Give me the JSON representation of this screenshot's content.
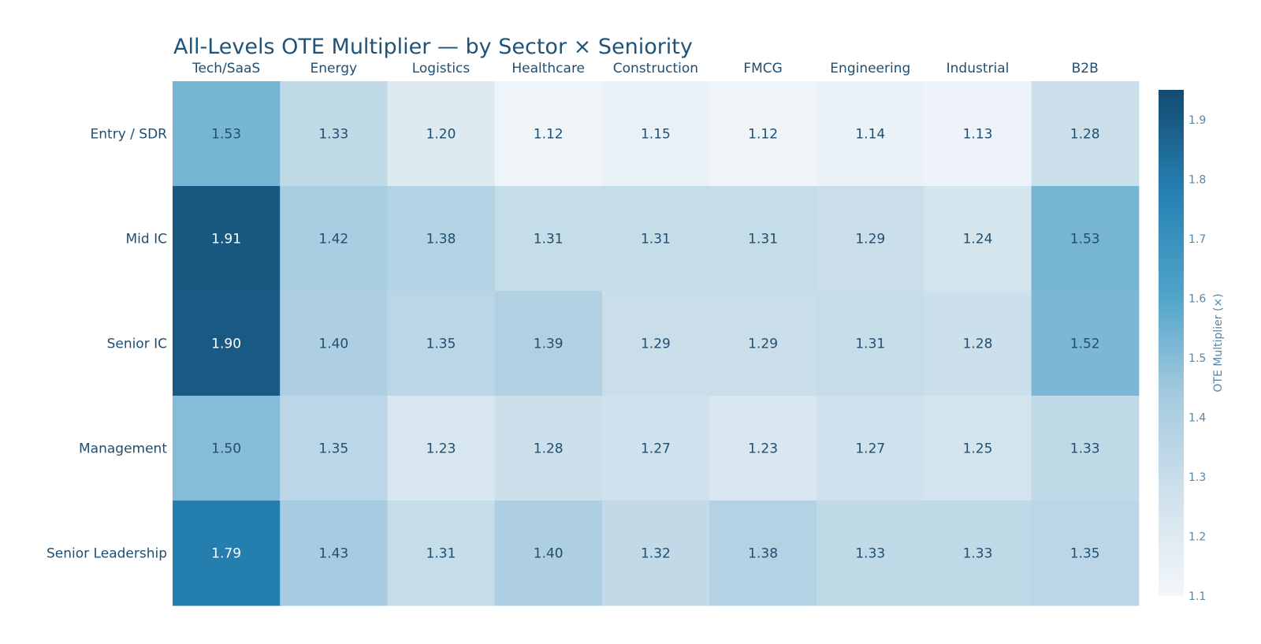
{
  "chart_data": {
    "type": "heatmap",
    "title": "All-Levels OTE Multiplier — by Sector × Seniority",
    "columns": [
      "Tech/SaaS",
      "Energy",
      "Logistics",
      "Healthcare",
      "Construction",
      "FMCG",
      "Engineering",
      "Industrial",
      "B2B"
    ],
    "rows": [
      "Entry / SDR",
      "Mid IC",
      "Senior IC",
      "Management",
      "Senior Leadership"
    ],
    "values": [
      [
        1.53,
        1.33,
        1.2,
        1.12,
        1.15,
        1.12,
        1.14,
        1.13,
        1.28
      ],
      [
        1.91,
        1.42,
        1.38,
        1.31,
        1.31,
        1.31,
        1.29,
        1.24,
        1.53
      ],
      [
        1.9,
        1.4,
        1.35,
        1.39,
        1.29,
        1.29,
        1.31,
        1.28,
        1.52
      ],
      [
        1.5,
        1.35,
        1.23,
        1.28,
        1.27,
        1.23,
        1.27,
        1.25,
        1.33
      ],
      [
        1.79,
        1.43,
        1.31,
        1.4,
        1.32,
        1.38,
        1.33,
        1.33,
        1.35
      ]
    ],
    "value_format": "0.00",
    "colorbar": {
      "title": "OTE Multiplier (×)",
      "range": [
        1.1,
        1.95
      ],
      "ticks": [
        1.1,
        1.2,
        1.3,
        1.4,
        1.5,
        1.6,
        1.7,
        1.8,
        1.9
      ]
    },
    "colorscale": [
      [
        0.0,
        "#f3f7fa"
      ],
      [
        0.2,
        "#cfe1ec"
      ],
      [
        0.4,
        "#a4cadf"
      ],
      [
        0.6,
        "#4ea3c9"
      ],
      [
        0.8,
        "#2581b2"
      ],
      [
        1.0,
        "#134a70"
      ]
    ]
  }
}
